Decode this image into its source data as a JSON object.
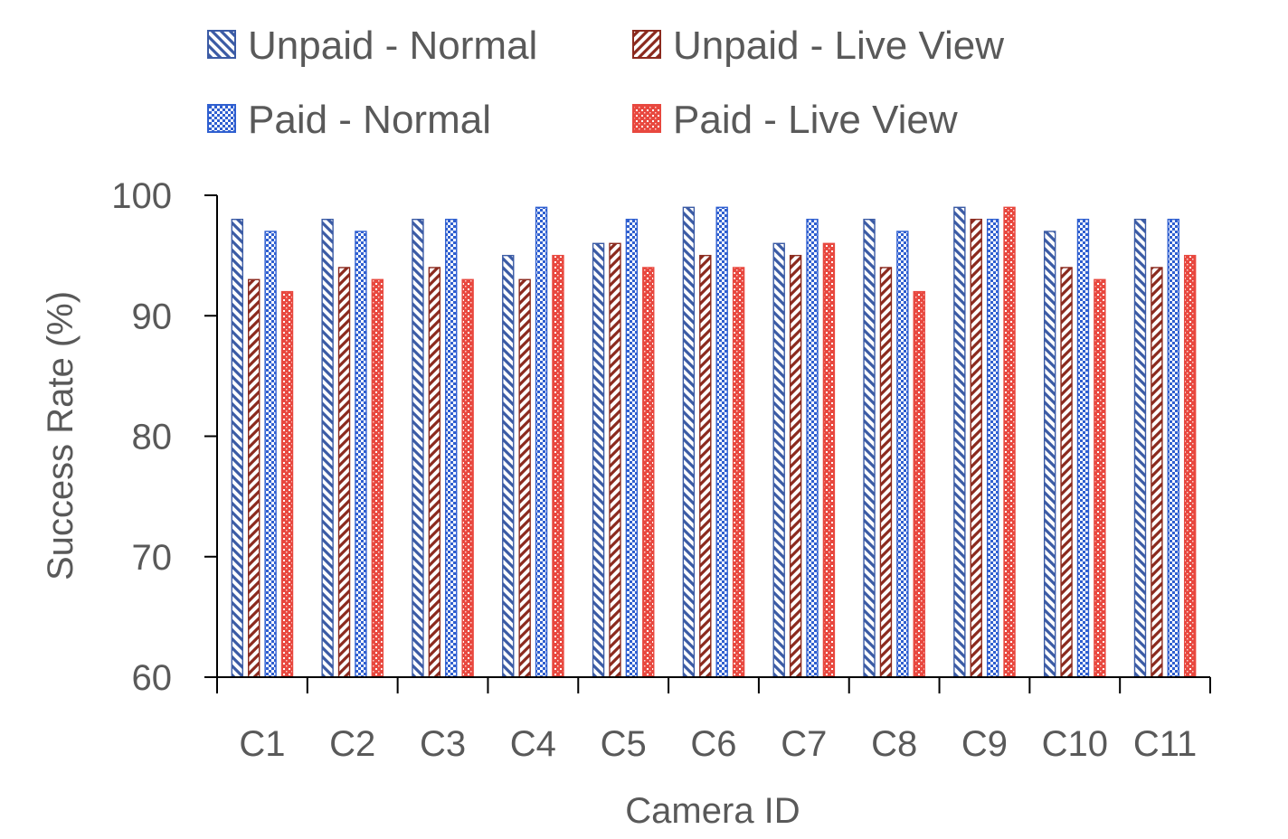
{
  "chart_data": {
    "type": "bar",
    "xlabel": "Camera ID",
    "ylabel": "Success Rate (%)",
    "ylim": [
      60,
      100
    ],
    "yticks": [
      60,
      70,
      80,
      90,
      100
    ],
    "grid": false,
    "legend_position": "top",
    "categories": [
      "C1",
      "C2",
      "C3",
      "C4",
      "C5",
      "C6",
      "C7",
      "C8",
      "C9",
      "C10",
      "C11"
    ],
    "series": [
      {
        "name": "Unpaid - Normal",
        "color": "#3B5BA5",
        "pattern": "diagonal-stripes-down",
        "values": [
          98,
          98,
          98,
          95,
          96,
          99,
          96,
          98,
          99,
          97,
          98
        ]
      },
      {
        "name": "Unpaid - Live View",
        "color": "#8B2A1E",
        "pattern": "diagonal-stripes-up",
        "values": [
          93,
          94,
          94,
          93,
          96,
          95,
          95,
          94,
          98,
          94,
          94
        ]
      },
      {
        "name": "Paid - Normal",
        "color": "#2F5FD0",
        "pattern": "checker",
        "values": [
          97,
          97,
          98,
          99,
          98,
          99,
          98,
          97,
          98,
          98,
          98
        ]
      },
      {
        "name": "Paid - Live View",
        "color": "#E8483F",
        "pattern": "dotted-checker",
        "values": [
          92,
          93,
          93,
          95,
          94,
          94,
          96,
          92,
          99,
          93,
          95
        ]
      }
    ]
  }
}
